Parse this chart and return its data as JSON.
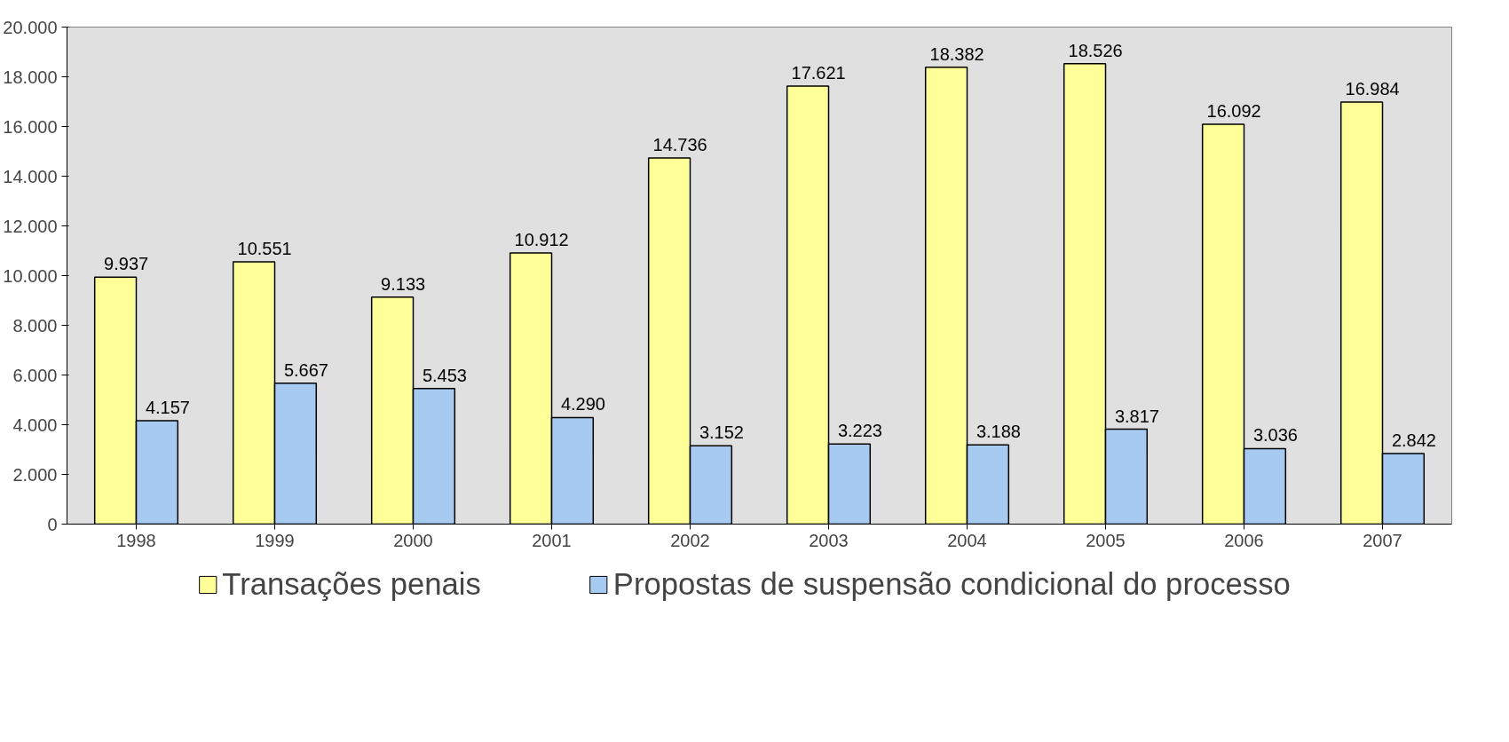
{
  "chart_data": {
    "type": "bar",
    "categories": [
      "1998",
      "1999",
      "2000",
      "2001",
      "2002",
      "2003",
      "2004",
      "2005",
      "2006",
      "2007"
    ],
    "series": [
      {
        "name": "Transações penais",
        "color": "#ffff99",
        "values": [
          9937,
          10551,
          9133,
          10912,
          14736,
          17621,
          18382,
          18526,
          16092,
          16984
        ],
        "value_labels": [
          "9.937",
          "10.551",
          "9.133",
          "10.912",
          "14.736",
          "17.621",
          "18.382",
          "18.526",
          "16.092",
          "16.984"
        ]
      },
      {
        "name": "Propostas de suspensão condicional do processo",
        "color": "#a6caf0",
        "values": [
          4157,
          5667,
          5453,
          4290,
          3152,
          3223,
          3188,
          3817,
          3036,
          2842
        ],
        "value_labels": [
          "4.157",
          "5.667",
          "5.453",
          "4.290",
          "3.152",
          "3.223",
          "3.188",
          "3.817",
          "3.036",
          "2.842"
        ]
      }
    ],
    "ylim": [
      0,
      20000
    ],
    "yticks": [
      0,
      {
        "value": 2000,
        "label": "2.000"
      },
      {
        "value": 4000,
        "label": "4.000"
      },
      {
        "value": 6000,
        "label": "6.000"
      },
      {
        "value": 8000,
        "label": "8.000"
      },
      {
        "value": 10000,
        "label": "10.000"
      },
      {
        "value": 12000,
        "label": "12.000"
      },
      {
        "value": 14000,
        "label": "14.000"
      },
      {
        "value": 16000,
        "label": "16.000"
      },
      {
        "value": 18000,
        "label": "18.000"
      },
      {
        "value": 20000,
        "label": "20.000"
      }
    ],
    "grid": false,
    "legend": "bottom"
  }
}
